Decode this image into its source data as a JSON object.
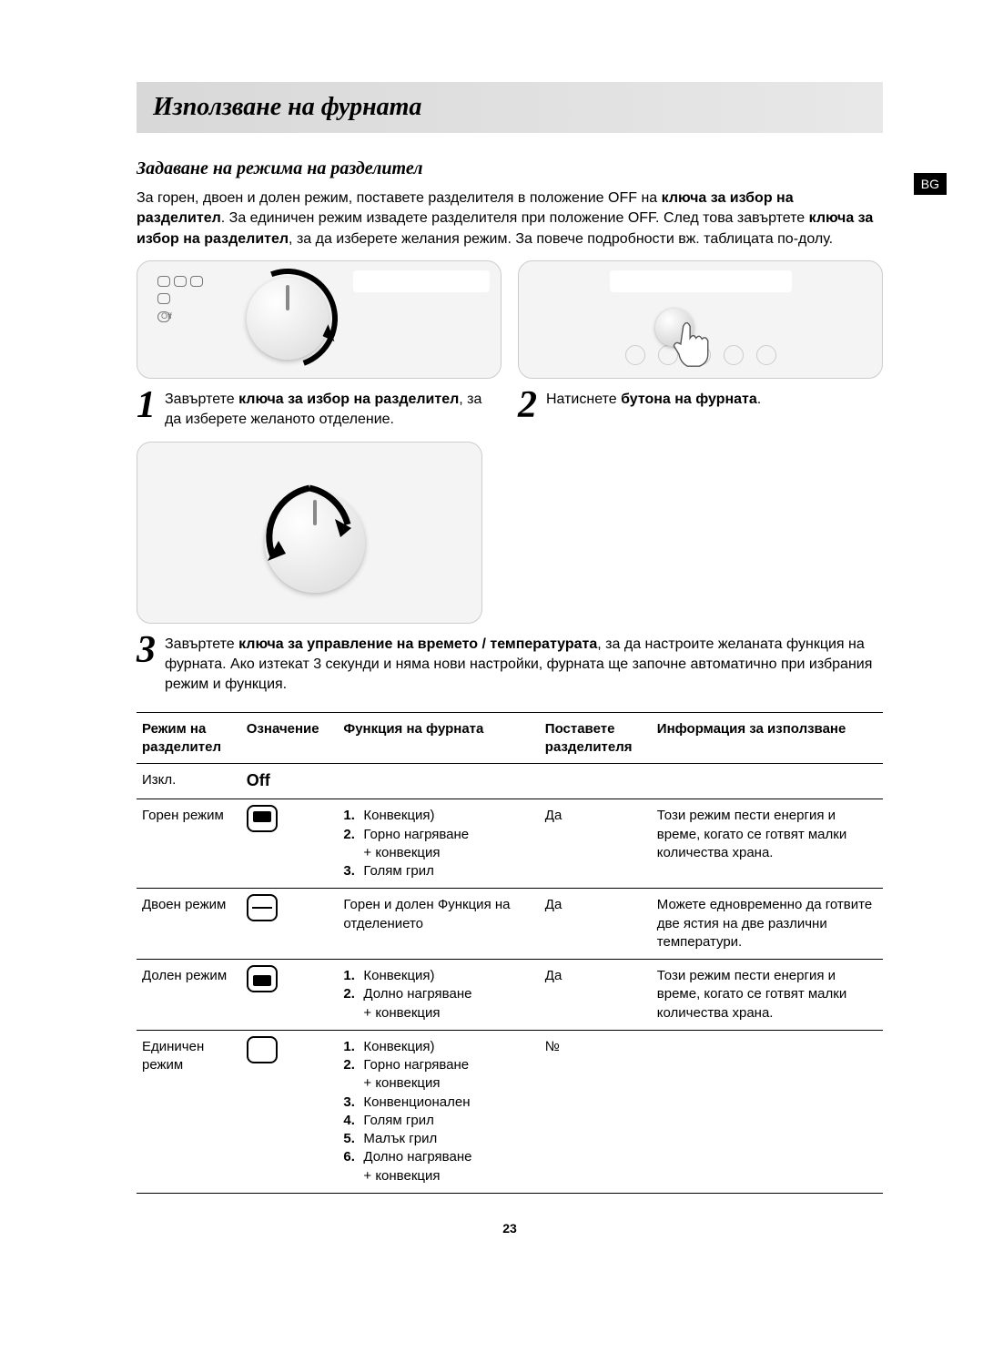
{
  "lang_tag": "BG",
  "title": "Използване на фурната",
  "section_heading": "Задаване на режима на разделител",
  "intro_html": "За горен, двоен и долен режим, поставете разделителя в положение OFF на <b>ключа за избор на разделител</b>. За единичен режим извадете разделителя при положение OFF. След това завъртете <b>ключа за избор на разделител</b>, за да изберете желания режим. За повече подробности вж. таблицата по-долу.",
  "steps": {
    "s1_num": "1",
    "s1_html": "Завъртете <b>ключа за избор на разделител</b>, за да изберете желаното отделение.",
    "s2_num": "2",
    "s2_html": "Натиснете <b>бутона на фурната</b>.",
    "s3_num": "3",
    "s3_html": "Завъртете <b>ключа за управление на времето / температурата</b>, за да настроите желаната функция на фурната. Ако изтекат 3 секунди и няма нови настройки, фурната ще започне автоматично при избрания режим и функция."
  },
  "table": {
    "headers": {
      "mode": "Режим на разделител",
      "mark": "Означение",
      "func": "Функция на фурната",
      "insert": "Поставете разделителя",
      "info": "Информация за използване"
    },
    "rows": [
      {
        "mode": "Изкл.",
        "mark_type": "off",
        "mark_text": "Off",
        "func_items": [],
        "func_plain": "",
        "insert": "",
        "info": ""
      },
      {
        "mode": "Горен режим",
        "mark_type": "upper",
        "func_items": [
          {
            "n": "1.",
            "t": "Конвекция)"
          },
          {
            "n": "2.",
            "t": "Горно нагряване",
            "extra": "+ конвекция"
          },
          {
            "n": "3.",
            "t": "Голям грил"
          }
        ],
        "insert": "Да",
        "info": "Този режим пести енергия и време, когато се готвят малки количества храна."
      },
      {
        "mode": "Двоен режим",
        "mark_type": "dual",
        "func_plain": "Горен и долен Функция на отделението",
        "insert": "Да",
        "info": "Можете едновременно да готвите две ястия на две различни температури."
      },
      {
        "mode": "Долен режим",
        "mark_type": "lower",
        "func_items": [
          {
            "n": "1.",
            "t": "Конвекция)"
          },
          {
            "n": "2.",
            "t": "Долно нагряване",
            "extra": "+ конвекция"
          }
        ],
        "insert": "Да",
        "info": "Този режим пести енергия и време, когато се готвят малки количества храна."
      },
      {
        "mode": "Единичен режим",
        "mark_type": "single",
        "func_items": [
          {
            "n": "1.",
            "t": "Конвекция)"
          },
          {
            "n": "2.",
            "t": "Горно нагряване",
            "extra": "+ конвекция"
          },
          {
            "n": "3.",
            "t": "Конвенционален"
          },
          {
            "n": "4.",
            "t": "Голям грил"
          },
          {
            "n": "5.",
            "t": "Малък грил"
          },
          {
            "n": "6.",
            "t": "Долно нагряване",
            "extra": "+ конвекция"
          }
        ],
        "insert": "№",
        "info": ""
      }
    ]
  },
  "page_number": "23"
}
